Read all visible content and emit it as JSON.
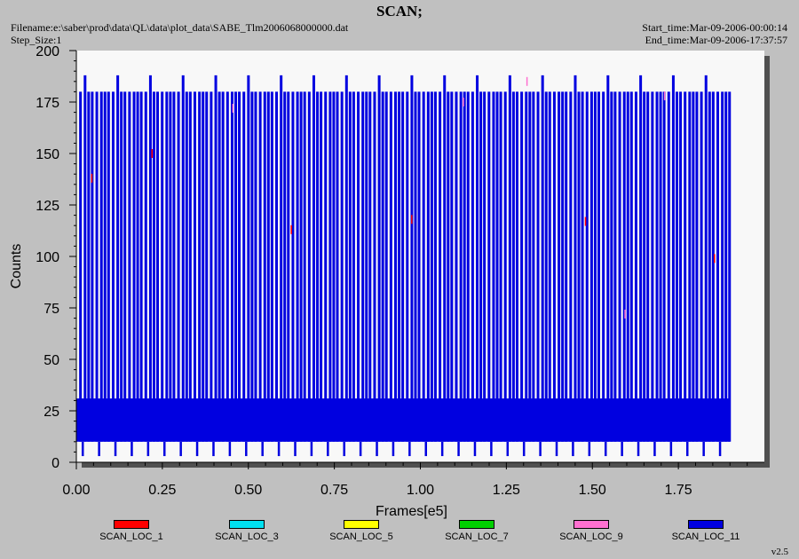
{
  "header": {
    "title": "SCAN;",
    "filename": "Filename:e:\\saber\\prod\\data\\QL\\data\\plot_data\\SABE_Tlm2006068000000.dat",
    "step_size": "Step_Size:1",
    "start_time": "Start_time:Mar-09-2006-00:00:14",
    "end_time": "End_time:Mar-09-2006-17:37:57"
  },
  "version": "v2.5",
  "colors": {
    "panel": "#c0c0c0",
    "plot_bg": "#f8f8f8",
    "shadow": "#505050"
  },
  "chart_data": {
    "type": "line",
    "title": "SCAN;",
    "xlabel": "Frames[e5]",
    "ylabel": "Counts",
    "xlim": [
      0,
      2.0
    ],
    "ylim": [
      0,
      200
    ],
    "xticks": [
      "0.00",
      "0.25",
      "0.50",
      "0.75",
      "1.00",
      "1.25",
      "1.50",
      "1.75"
    ],
    "yticks": [
      "0",
      "25",
      "50",
      "75",
      "100",
      "125",
      "150",
      "175",
      "200"
    ],
    "grid": false,
    "legend_position": "bottom",
    "series": [
      {
        "name": "SCAN_LOC_1",
        "color": "#ff0000"
      },
      {
        "name": "SCAN_LOC_3",
        "color": "#00e0f0"
      },
      {
        "name": "SCAN_LOC_5",
        "color": "#ffff00"
      },
      {
        "name": "SCAN_LOC_7",
        "color": "#00d000"
      },
      {
        "name": "SCAN_LOC_9",
        "color": "#ff70d0"
      },
      {
        "name": "SCAN_LOC_11",
        "color": "#0000e0"
      }
    ],
    "dominant_series": "SCAN_LOC_11",
    "data_x_range": [
      0.0,
      1.9
    ],
    "band_range": [
      10,
      31
    ],
    "spike_levels": [
      180,
      188
    ],
    "dip_level": 3,
    "burst_period": 0.0475,
    "sparse_points": [
      {
        "x": 0.045,
        "y": 138,
        "color": "#ff0000"
      },
      {
        "x": 0.22,
        "y": 150,
        "color": "#ff0000"
      },
      {
        "x": 0.455,
        "y": 172,
        "color": "#ff70d0"
      },
      {
        "x": 0.625,
        "y": 113,
        "color": "#ff0000"
      },
      {
        "x": 0.975,
        "y": 118,
        "color": "#ff0000"
      },
      {
        "x": 1.125,
        "y": 175,
        "color": "#ff70d0"
      },
      {
        "x": 1.31,
        "y": 185,
        "color": "#ff70d0"
      },
      {
        "x": 1.48,
        "y": 117,
        "color": "#ff0000"
      },
      {
        "x": 1.595,
        "y": 72,
        "color": "#ff70d0"
      },
      {
        "x": 1.71,
        "y": 178,
        "color": "#ff70d0"
      },
      {
        "x": 1.855,
        "y": 99,
        "color": "#ff0000"
      }
    ]
  }
}
